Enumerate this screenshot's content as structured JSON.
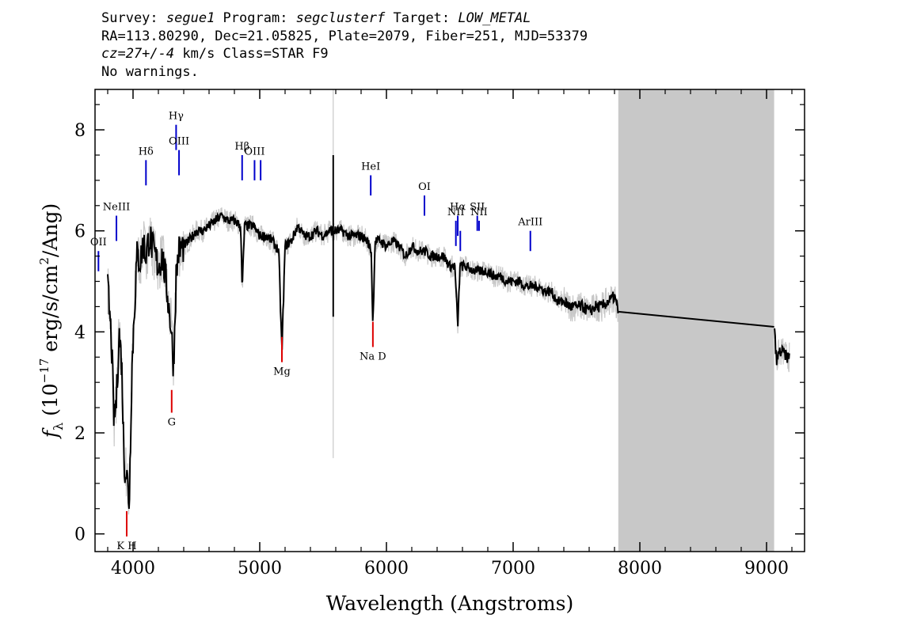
{
  "header": {
    "line1": {
      "survey_label": "Survey: ",
      "survey": "segue1",
      "program_label": " Program: ",
      "program": "segclusterf",
      "target_label": " Target: ",
      "target": "LOW_METAL"
    },
    "line2": "RA=113.80290, Dec=21.05825, Plate=2079, Fiber=251, MJD=53379",
    "line3": {
      "cz": "cz=27+/-4",
      "rest": " km/s Class=STAR F9"
    },
    "line4": "No warnings."
  },
  "chart_data": {
    "type": "line",
    "xlabel": "Wavelength (Angstroms)",
    "ylabel": "f_λ (10^-17 erg/s/cm^2/Ang)",
    "xlim": [
      3700,
      9300
    ],
    "ylim": [
      -0.35,
      8.8
    ],
    "x_ticks": [
      4000,
      5000,
      6000,
      7000,
      8000,
      9000
    ],
    "y_ticks": [
      0,
      2,
      4,
      6,
      8
    ],
    "masked_region": [
      7830,
      9060
    ],
    "colors": {
      "spectrum": "#000000",
      "noise": "#c8c8c8",
      "emission": "#0000cc",
      "absorption": "#dd0000",
      "mask": "#c8c8c8"
    },
    "series": [
      {
        "x": [
          3800,
          3830,
          3850,
          3870,
          3890,
          3910,
          3930,
          3950,
          3970,
          3990,
          4010,
          4030,
          4060,
          4080,
          4100,
          4130,
          4160,
          4200,
          4230,
          4260,
          4300,
          4320,
          4340,
          4360,
          4400,
          4440,
          4500,
          4550,
          4600,
          4650,
          4700,
          4750,
          4800,
          4850,
          4861,
          4880,
          4900,
          4950,
          5000,
          5050,
          5100,
          5150,
          5175,
          5200,
          5250,
          5300,
          5350,
          5400,
          5450,
          5500,
          5550,
          5580,
          5600,
          5650,
          5700,
          5750,
          5800,
          5850,
          5880,
          5893,
          5910,
          5950,
          6000,
          6050,
          6100,
          6150,
          6200,
          6250,
          6300,
          6350,
          6400,
          6450,
          6500,
          6540,
          6563,
          6580,
          6620,
          6700,
          6750,
          6800,
          6850,
          6900,
          6950,
          7000,
          7050,
          7100,
          7150,
          7200,
          7250,
          7300,
          7350,
          7400,
          7450,
          7500,
          7550,
          7600,
          7650,
          7700,
          7750,
          7800,
          7830,
          9060,
          9080,
          9100,
          9130,
          9160,
          9180
        ],
        "y": [
          4.9,
          3.8,
          2.2,
          2.7,
          4.0,
          3.4,
          1.4,
          1.2,
          0.6,
          3.2,
          4.4,
          5.5,
          5.4,
          5.8,
          5.5,
          5.9,
          5.6,
          5.3,
          5.5,
          5.0,
          4.1,
          3.3,
          5.1,
          5.6,
          5.7,
          5.8,
          6.0,
          6.0,
          6.1,
          6.2,
          6.3,
          6.2,
          6.2,
          6.1,
          4.8,
          6.1,
          6.1,
          6.1,
          5.9,
          5.9,
          5.8,
          5.6,
          3.6,
          5.7,
          5.8,
          6.1,
          5.9,
          5.9,
          6.0,
          5.9,
          6.0,
          6.0,
          6.0,
          6.0,
          5.9,
          5.9,
          5.9,
          5.8,
          5.6,
          4.1,
          5.8,
          5.8,
          5.7,
          5.8,
          5.7,
          5.5,
          5.7,
          5.6,
          5.6,
          5.5,
          5.5,
          5.5,
          5.3,
          5.3,
          4.1,
          5.3,
          5.3,
          5.2,
          5.2,
          5.2,
          5.1,
          5.1,
          5.0,
          5.0,
          5.0,
          4.9,
          4.9,
          4.9,
          4.8,
          4.8,
          4.6,
          4.6,
          4.5,
          4.5,
          4.5,
          4.4,
          4.5,
          4.5,
          4.6,
          4.7,
          4.4,
          4.1,
          3.4,
          3.6,
          3.6,
          3.5,
          3.5
        ]
      }
    ],
    "emission_lines": [
      {
        "label": "OII",
        "x": 3727,
        "y0": 5.2,
        "y1": 5.6
      },
      {
        "label": "NeIII",
        "x": 3869,
        "y0": 5.8,
        "y1": 6.3
      },
      {
        "label": "Hδ",
        "x": 4102,
        "y0": 6.9,
        "y1": 7.4
      },
      {
        "label": "Hγ",
        "x": 4340,
        "y0": 7.6,
        "y1": 8.1
      },
      {
        "label": "OIII",
        "x": 4363,
        "y0": 7.1,
        "y1": 7.6
      },
      {
        "label": "Hβ",
        "x": 4861,
        "y0": 7.0,
        "y1": 7.5
      },
      {
        "label": "OIII",
        "x": 4959,
        "y0": 7.0,
        "y1": 7.4
      },
      {
        "label": "",
        "x": 5007,
        "y0": 7.0,
        "y1": 7.4
      },
      {
        "label": "HeI",
        "x": 5876,
        "y0": 6.7,
        "y1": 7.1
      },
      {
        "label": "OI",
        "x": 6300,
        "y0": 6.3,
        "y1": 6.7
      },
      {
        "label": "NII",
        "x": 6548,
        "y0": 5.7,
        "y1": 6.2
      },
      {
        "label": "Hα",
        "x": 6563,
        "y0": 5.9,
        "y1": 6.3
      },
      {
        "label": "",
        "x": 6583,
        "y0": 5.6,
        "y1": 6.0
      },
      {
        "label": "SII",
        "x": 6717,
        "y0": 6.0,
        "y1": 6.3
      },
      {
        "label": "NII",
        "x": 6731,
        "y0": 6.0,
        "y1": 6.2
      },
      {
        "label": "ArIII",
        "x": 7136,
        "y0": 5.6,
        "y1": 6.0
      }
    ],
    "absorption_lines": [
      {
        "label": "K H",
        "x": 3950,
        "y0": -0.05,
        "y1": 0.45
      },
      {
        "label": "G",
        "x": 4305,
        "y0": 2.4,
        "y1": 2.85
      },
      {
        "label": "Mg",
        "x": 5175,
        "y0": 3.4,
        "y1": 3.9
      },
      {
        "label": "Na D",
        "x": 5893,
        "y0": 3.7,
        "y1": 4.2
      }
    ]
  }
}
